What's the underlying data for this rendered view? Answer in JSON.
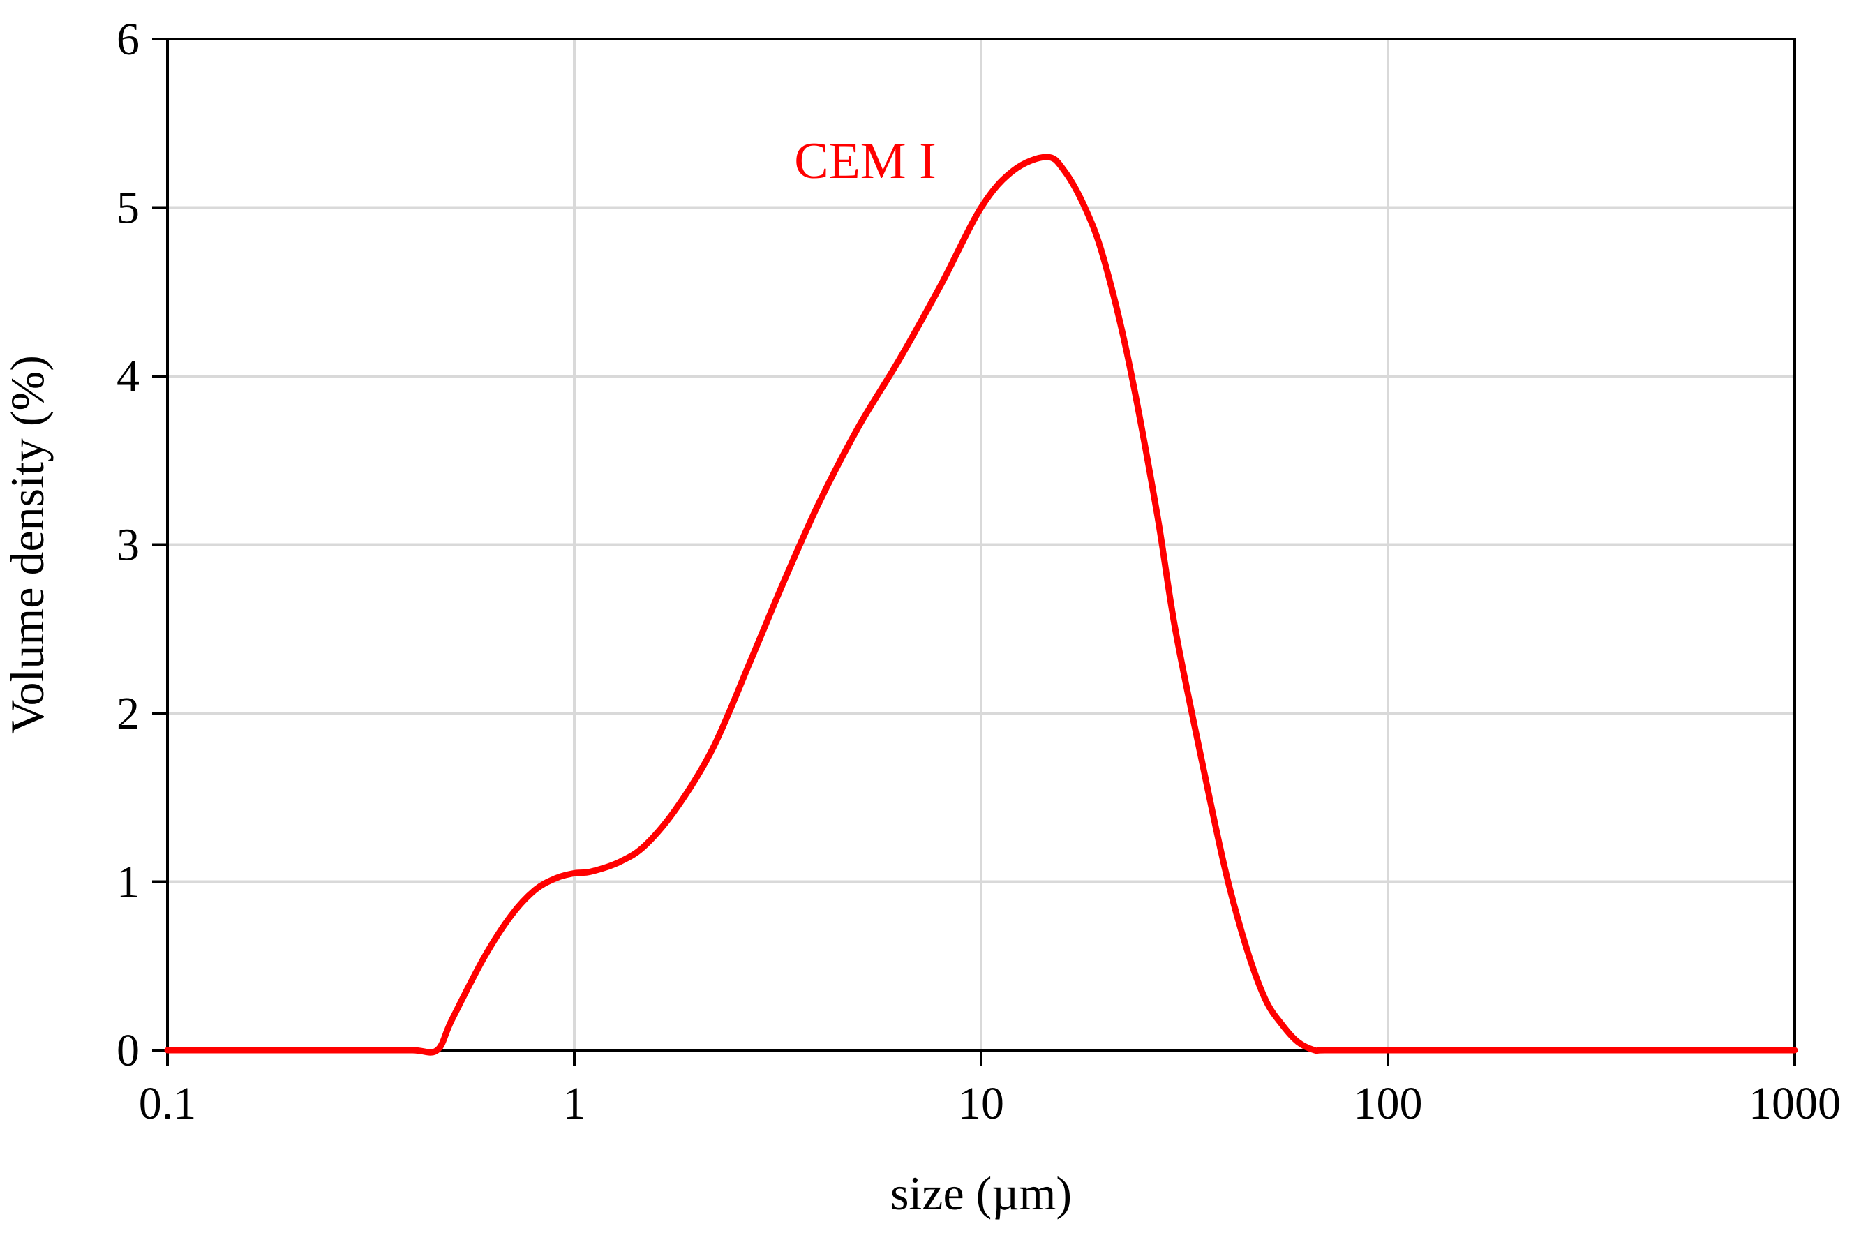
{
  "chart_data": {
    "type": "line",
    "title": "",
    "xlabel": "size (µm)",
    "ylabel": "Volume density (%)",
    "xscale": "log",
    "xlim": [
      0.1,
      1000
    ],
    "ylim": [
      0,
      6
    ],
    "grid": true,
    "legend": "none",
    "x_ticks": [
      0.1,
      1,
      10,
      100,
      1000
    ],
    "x_tick_labels": [
      "0.1",
      "1",
      "10",
      "100",
      "1000"
    ],
    "y_ticks": [
      0,
      1,
      2,
      3,
      4,
      5,
      6
    ],
    "y_tick_labels": [
      "0",
      "1",
      "2",
      "3",
      "4",
      "5",
      "6"
    ],
    "series": [
      {
        "name": "CEM I",
        "color": "#ff0000",
        "x": [
          0.1,
          0.3,
          0.4,
          0.46,
          0.5,
          0.6,
          0.7,
          0.8,
          0.9,
          1.0,
          1.1,
          1.3,
          1.5,
          1.8,
          2.2,
          2.7,
          3.3,
          4.0,
          5.0,
          6.3,
          8.0,
          10.0,
          12.0,
          14.5,
          16.0,
          18.0,
          20.0,
          23.0,
          27.0,
          30.0,
          35.0,
          40.0,
          45.0,
          50.0,
          55.0,
          60.0,
          66.0,
          70.0,
          100.0,
          300.0,
          1000.0
        ],
        "values": [
          0,
          0,
          0,
          0,
          0.18,
          0.55,
          0.8,
          0.95,
          1.02,
          1.05,
          1.06,
          1.12,
          1.22,
          1.45,
          1.8,
          2.3,
          2.8,
          3.25,
          3.7,
          4.1,
          4.55,
          5.0,
          5.22,
          5.3,
          5.22,
          5.0,
          4.7,
          4.1,
          3.2,
          2.5,
          1.7,
          1.05,
          0.6,
          0.3,
          0.15,
          0.05,
          0,
          0,
          0,
          0,
          0
        ],
        "label": "CEM I"
      }
    ]
  }
}
